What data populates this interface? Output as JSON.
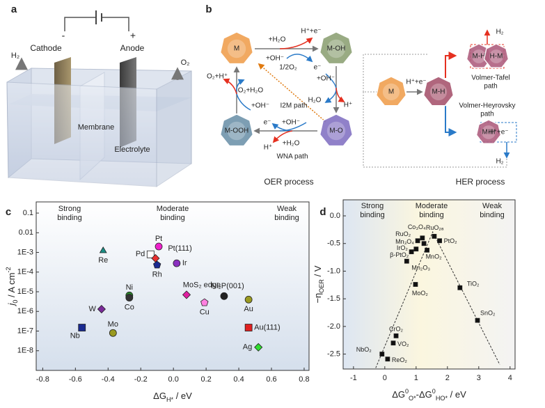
{
  "panel_a": {
    "label": "a",
    "minus": "-",
    "plus": "+",
    "cathode": "Cathode",
    "anode": "Anode",
    "h2": "H₂",
    "o2": "O₂",
    "membrane": "Membrane",
    "electrolyte": "Electrolyte"
  },
  "panel_b": {
    "label": "b",
    "oer": {
      "nodes": [
        "M",
        "M-OH",
        "M-O",
        "M-OOH"
      ],
      "steps": [
        "+H₂O",
        "H⁺+e⁻",
        "+OH⁻",
        "e⁻",
        "+OH⁻",
        "H₂O",
        "H⁺",
        "e⁻",
        "+OH⁻",
        "+H₂O",
        "H⁺",
        "O₂+H⁺",
        "O₂+H₂O",
        "+OH⁻",
        "1/2O₂"
      ],
      "paths": [
        "I2M path",
        "WNA path"
      ],
      "process": "OER process"
    },
    "her": {
      "nodes": [
        "M",
        "M-H",
        "M-H",
        "H-M",
        "M-H"
      ],
      "steps": [
        "H⁺+e⁻",
        "H₂",
        "H⁺+e⁻",
        "H₂"
      ],
      "paths": [
        "Volmer-Tafel",
        "path",
        "Volmer-Heyrovsky",
        "path"
      ],
      "process": "HER process"
    }
  },
  "chart_data": [
    {
      "type": "scatter",
      "panel": "c",
      "yscale": "log",
      "xlabel": [
        {
          "text": "ΔG"
        },
        {
          "text": "H*",
          "shift": "sub"
        },
        {
          "text": " / eV"
        }
      ],
      "ylabel": [
        {
          "text": "j",
          "style": "italic"
        },
        {
          "text": "0",
          "shift": "sub"
        },
        {
          "text": " / A cm"
        },
        {
          "text": "-2",
          "shift": "super"
        }
      ],
      "annotations": [
        {
          "text": [
            "Strong",
            "binding"
          ]
        },
        {
          "text": [
            "Moderate",
            "binding"
          ]
        },
        {
          "text": [
            "Weak",
            "binding"
          ]
        }
      ],
      "xlim": [
        -0.84,
        0.83
      ],
      "ylim": [
        1e-09,
        0.37
      ],
      "xticks": [
        -0.8,
        -0.6,
        -0.4,
        -0.2,
        {
          "value": 0,
          "label": "0.0"
        },
        0.2,
        0.4,
        0.6,
        0.8
      ],
      "yticks": [
        0.1,
        0.01,
        {
          "value": 0.001,
          "label": "1E-3"
        },
        {
          "value": 0.0001,
          "label": "1E-4"
        },
        {
          "value": 1e-05,
          "label": "1E-5"
        },
        {
          "value": 1e-06,
          "label": "1E-6"
        },
        {
          "value": 1e-07,
          "label": "1E-7"
        },
        {
          "value": 1e-08,
          "label": "1E-8"
        }
      ],
      "labels": [
        "Re",
        "Pd",
        "Pt",
        "Pt(111)",
        "Rh",
        "Ir",
        "Ni",
        "Co",
        "W",
        "MoS₂ edge",
        "Cu",
        "Ni₂P(001)",
        "Au",
        "Nb",
        "Mo",
        "Au(111)",
        "Ag"
      ],
      "x": [
        -0.43,
        -0.14,
        -0.09,
        -0.11,
        -0.1,
        0.02,
        -0.27,
        -0.27,
        -0.44,
        0.08,
        0.19,
        0.31,
        0.46,
        -0.56,
        -0.37,
        0.46,
        0.52
      ],
      "values": [
        0.0012,
        0.0008,
        0.002,
        0.0005,
        0.00023,
        0.00028,
        6.5e-06,
        5e-06,
        1.3e-06,
        7e-06,
        2.8e-06,
        6e-06,
        4e-06,
        1.5e-07,
        8e-08,
        1.5e-07,
        1.5e-08
      ],
      "markers": [
        "triangle",
        "square",
        "circle",
        "diamond",
        "pentagon",
        "circle",
        "circle",
        "circle",
        "diamond",
        "diamond",
        "pentagon",
        "circle",
        "circle",
        "square",
        "circle",
        "square",
        "diamond"
      ],
      "colors": [
        "#1a8f86",
        "#ffffff",
        "#ee22cc",
        "#e83030",
        "#1a2a90",
        "#8a30c0",
        "#2a8a2a",
        "#333333",
        "#7a2a9a",
        "#e020a0",
        "#ff80e0",
        "#222222",
        "#9a9a20",
        "#1a2a90",
        "#9a9a20",
        "#e02020",
        "#30dd30"
      ]
    },
    {
      "type": "scatter",
      "panel": "d",
      "xlabel": [
        {
          "text": "ΔG"
        },
        {
          "text": "0",
          "shift": "super"
        },
        {
          "text": "O*",
          "shift": "sub"
        },
        {
          "text": "-ΔG"
        },
        {
          "text": "0",
          "shift": "super"
        },
        {
          "text": "HO*",
          "shift": "sub"
        },
        {
          "text": " / eV"
        }
      ],
      "ylabel": [
        {
          "text": "−η"
        },
        {
          "text": "OER",
          "shift": "sub"
        },
        {
          "text": " / V"
        }
      ],
      "annotations": [
        {
          "text": [
            "Strong",
            "binding"
          ]
        },
        {
          "text": [
            "Moderate",
            "binding"
          ]
        },
        {
          "text": [
            "Weak",
            "binding"
          ]
        }
      ],
      "xlim": [
        -1.33,
        4.16
      ],
      "ylim": [
        -2.77,
        0.29
      ],
      "xticks": [
        -1,
        0,
        1,
        2,
        3,
        4
      ],
      "yticks": [
        {
          "value": 0,
          "label": "0.0"
        },
        -0.5,
        {
          "value": -1,
          "label": "-1.0"
        },
        -1.5,
        {
          "value": -2,
          "label": "-2.0"
        },
        -2.5
      ],
      "labels": [
        "RuO₂ₐ",
        "Co₃O₄",
        "PtO₂",
        "RuO₂",
        "Mn₃O₄",
        "IrO₂",
        "β-PtO₂",
        "MnO₂",
        "Mn₂O₃",
        "MoO₂",
        "TiO₂",
        "SnO₂",
        "CrO₂",
        "VO₂",
        "NbO₂",
        "ReO₂"
      ],
      "x": [
        1.58,
        1.2,
        1.75,
        1.05,
        1.25,
        1.0,
        0.85,
        1.35,
        0.7,
        0.98,
        2.4,
        2.96,
        0.36,
        0.27,
        -0.09,
        0.09
      ],
      "values": [
        -0.37,
        -0.4,
        -0.45,
        -0.45,
        -0.5,
        -0.6,
        -0.65,
        -0.62,
        -0.82,
        -1.24,
        -1.3,
        -1.89,
        -2.17,
        -2.3,
        -2.5,
        -2.59
      ],
      "markers": [
        "square",
        "square",
        "square",
        "square",
        "square",
        "square",
        "square",
        "square",
        "square",
        "square",
        "square",
        "square",
        "square",
        "square",
        "square",
        "square"
      ],
      "color": "#111111",
      "lines": [
        {
          "x": [
            -0.29,
            1.53,
            3.67
          ],
          "y": [
            -2.75,
            -0.29,
            -2.69
          ],
          "style": "dashed"
        }
      ]
    }
  ]
}
